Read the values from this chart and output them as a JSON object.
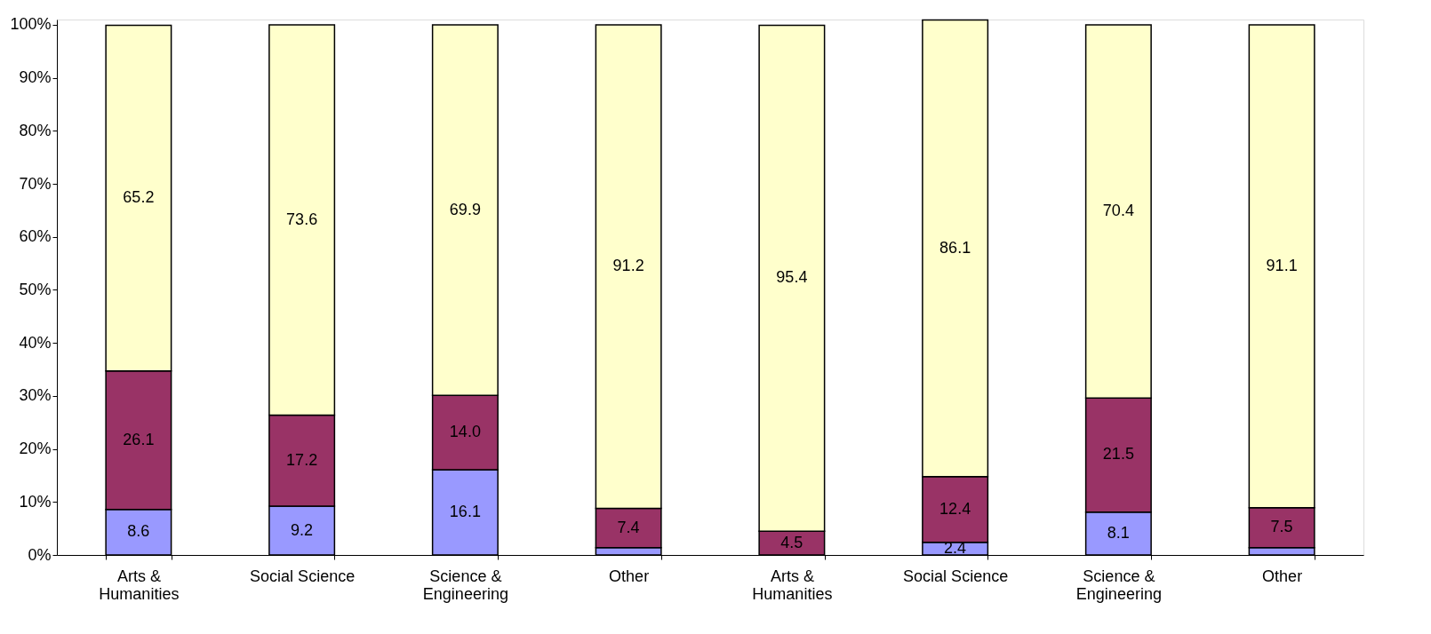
{
  "chart_data": {
    "type": "bar",
    "stacked": true,
    "categories": [
      "Arts & Humanities",
      "Social Science",
      "Science & Engineering",
      "Other",
      "Arts & Humanities",
      "Social Science",
      "Science & Engineering",
      "Other"
    ],
    "series": [
      {
        "color": "#9999ff",
        "values": [
          8.6,
          9.2,
          16.1,
          1.4,
          null,
          2.4,
          8.1,
          1.4
        ],
        "value_labels": [
          "8.6",
          "9.2",
          "16.1",
          null,
          null,
          "2.4",
          "8.1",
          null
        ]
      },
      {
        "color": "#993366",
        "values": [
          26.1,
          17.2,
          14.0,
          7.4,
          4.5,
          12.4,
          21.5,
          7.5
        ],
        "value_labels": [
          "26.1",
          "17.2",
          "14.0",
          "7.4",
          "4.5",
          "12.4",
          "21.5",
          "7.5"
        ]
      },
      {
        "color": "#ffffcc",
        "values": [
          65.2,
          73.6,
          69.9,
          91.2,
          95.4,
          86.1,
          70.4,
          91.1
        ],
        "value_labels": [
          "65.2",
          "73.6",
          "69.9",
          "91.2",
          "95.4",
          "86.1",
          "70.4",
          "91.1"
        ]
      }
    ],
    "ylim": [
      0,
      101
    ],
    "yticks": [
      {
        "value": 0,
        "label": "0%"
      },
      {
        "value": 10,
        "label": "10%"
      },
      {
        "value": 20,
        "label": "20%"
      },
      {
        "value": 30,
        "label": "30%"
      },
      {
        "value": 40,
        "label": "40%"
      },
      {
        "value": 50,
        "label": "50%"
      },
      {
        "value": 60,
        "label": "60%"
      },
      {
        "value": 70,
        "label": "70%"
      },
      {
        "value": 80,
        "label": "80%"
      },
      {
        "value": 90,
        "label": "90%"
      },
      {
        "value": 100,
        "label": "100%"
      }
    ],
    "grid": false,
    "legend": false
  }
}
